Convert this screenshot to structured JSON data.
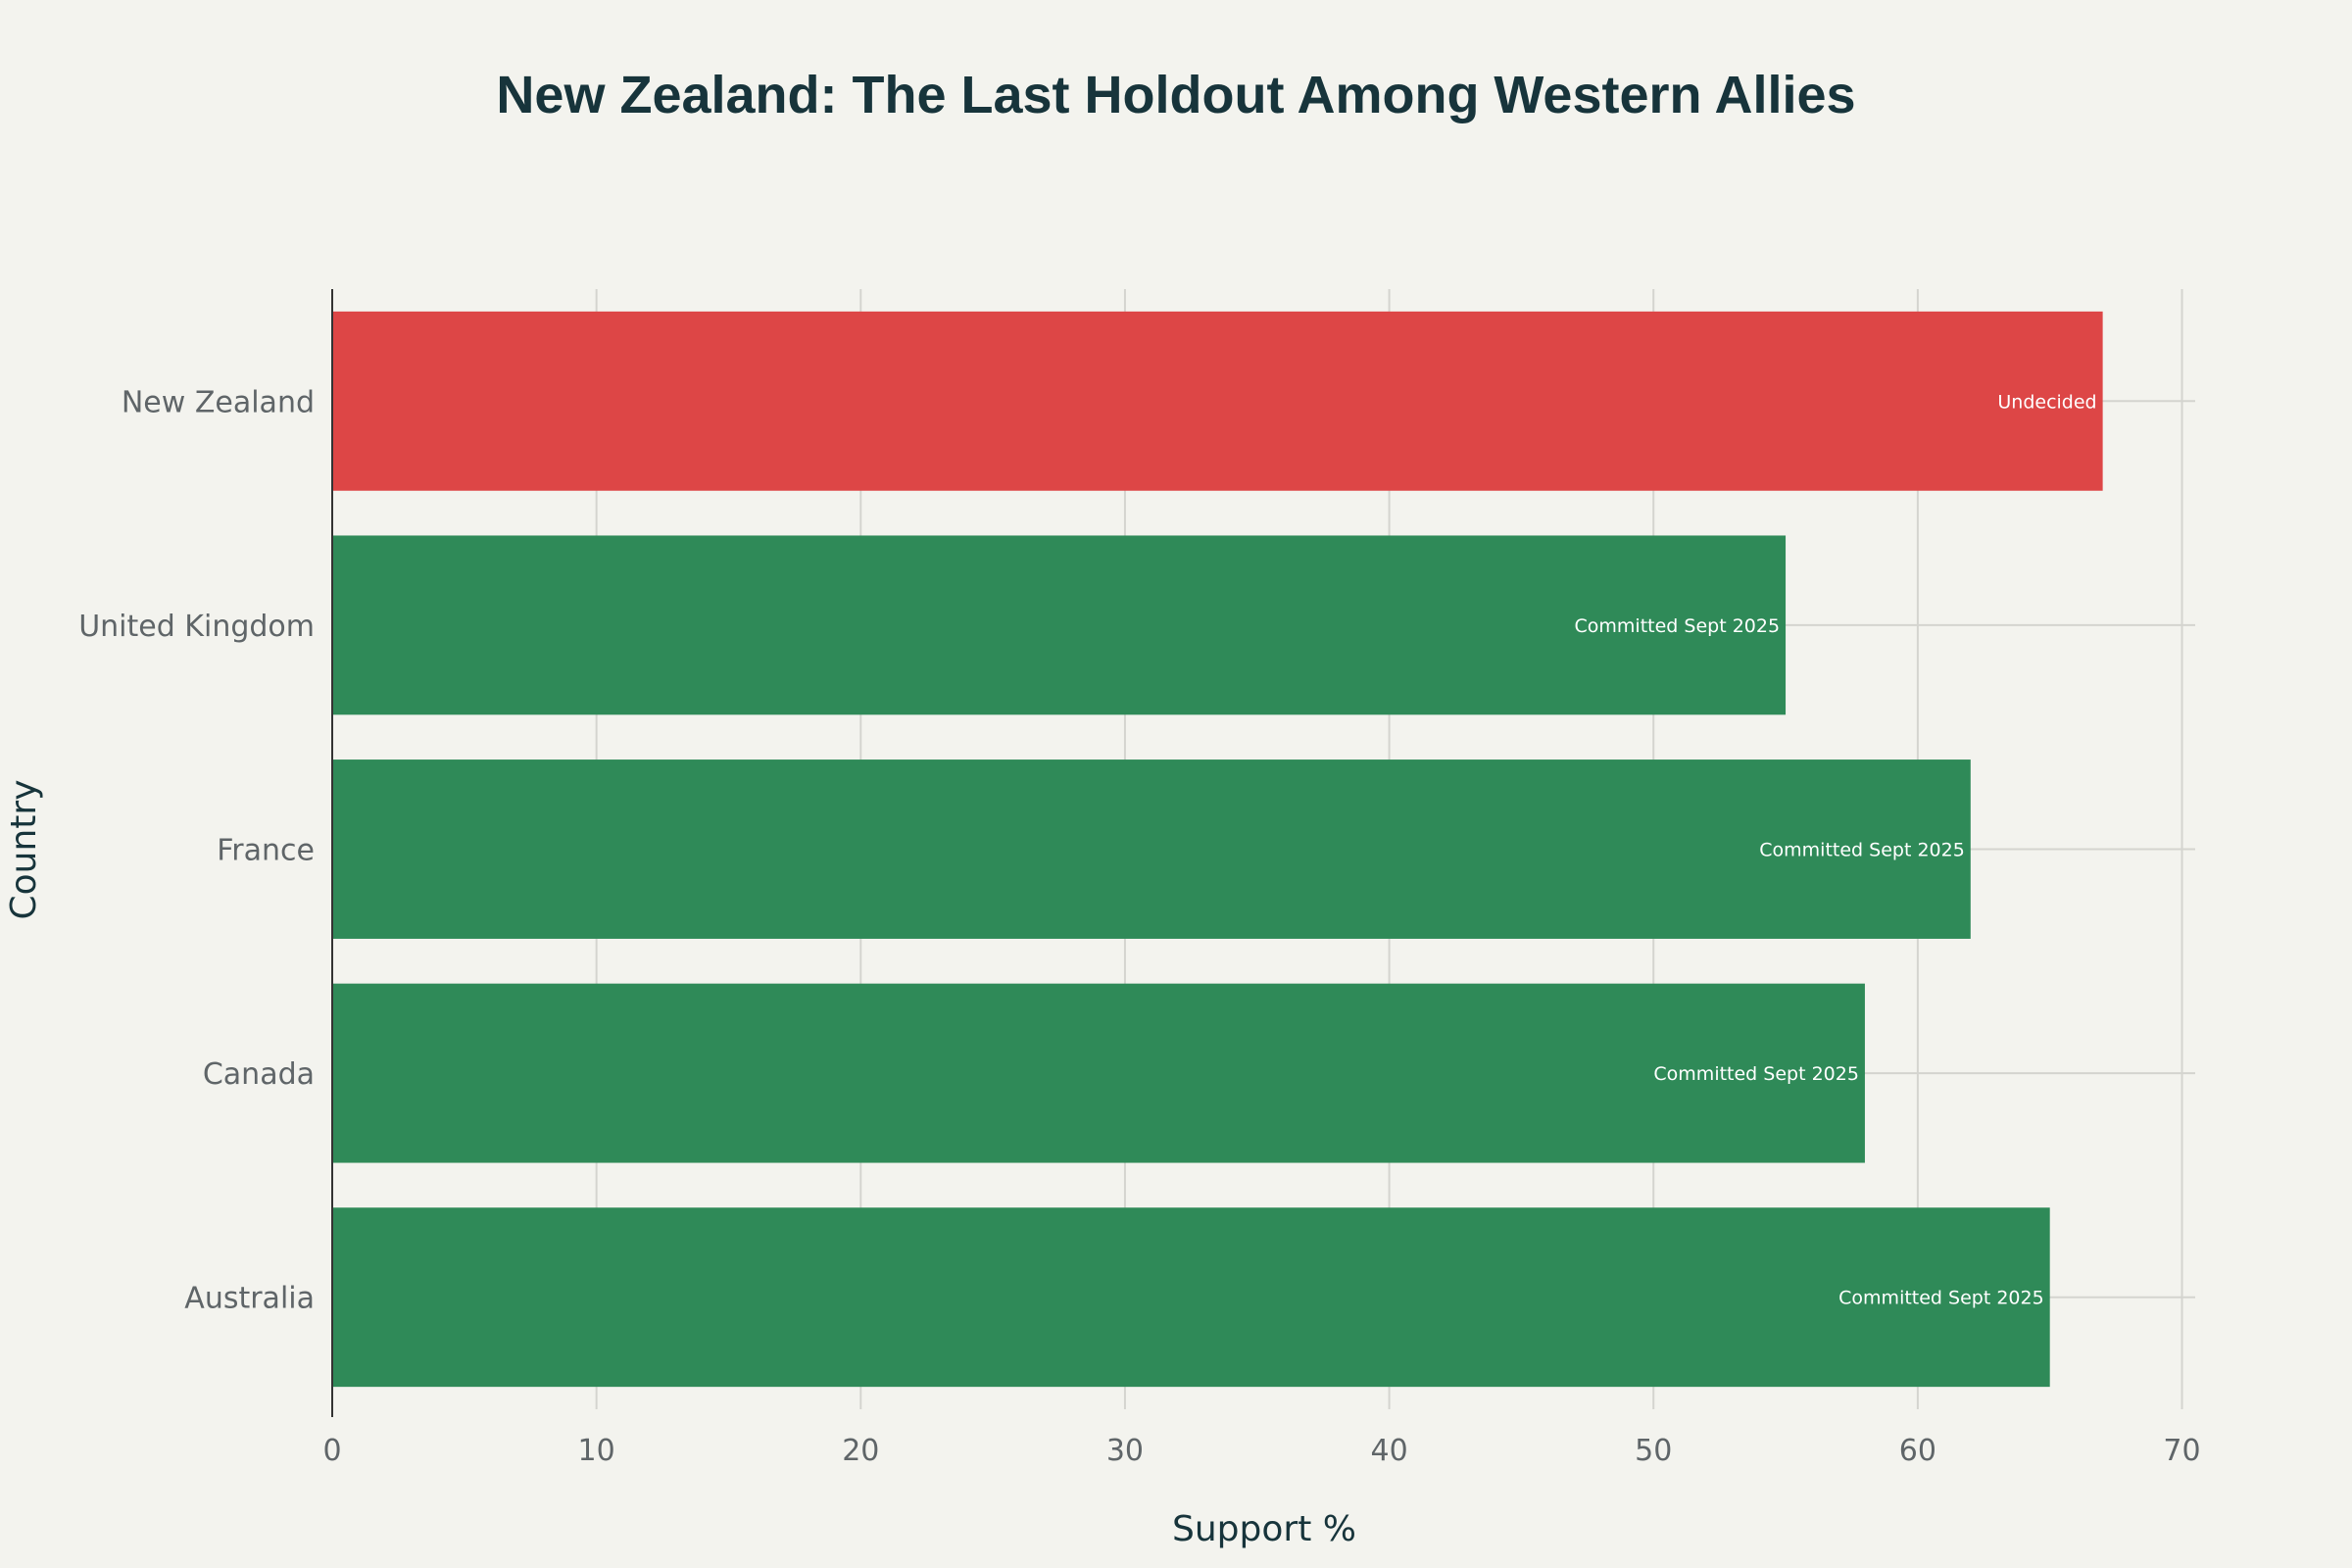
{
  "chart_data": {
    "type": "bar",
    "orientation": "horizontal",
    "title": "New Zealand: The Last Holdout Among Western Allies",
    "xlabel": "Support %",
    "ylabel": "Country",
    "xlim": [
      0,
      70.5
    ],
    "xticks": [
      0,
      10,
      20,
      30,
      40,
      50,
      60,
      70
    ],
    "grid": true,
    "categories": [
      "New Zealand",
      "United Kingdom",
      "France",
      "Canada",
      "Australia"
    ],
    "values": [
      67,
      55,
      62,
      58,
      65
    ],
    "labels": [
      "Undecided",
      "Committed Sept 2025",
      "Committed Sept 2025",
      "Committed Sept 2025",
      "Committed Sept 2025"
    ],
    "colors": [
      "#dd4646",
      "#2f8a58",
      "#2f8a58",
      "#2f8a58",
      "#2f8a58"
    ]
  }
}
